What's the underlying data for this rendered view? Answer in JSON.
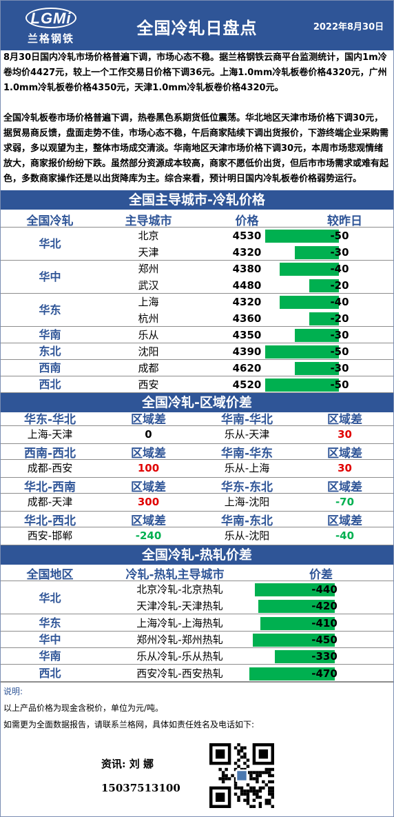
{
  "header": {
    "logo_text": "LGMi",
    "logo_cn": "兰格钢铁",
    "title": "全国冷轧日盘点",
    "date": "2022年8月30日"
  },
  "summary": {
    "p1": "8月30日国内冷轧市场价格普遍下调，市场心态不稳。据兰格钢铁云商平台监测统计，国内1m冷卷均价4427元，较上一个工作交易日价格下调36元。上海1.0mm冷轧板卷价格4320元，广州1.0mm冷轧板卷价格4350元，天津1.0mm冷轧板卷价格4320元。",
    "p2": "全国冷轧板卷市场价格普遍下调，热卷黑色系期货低位震荡。华北地区天津市场价格下调30元，据贸易商反馈，盘面走势不佳，市场心态不稳，午后商家陆续下调出货报价，下游终端企业采购需求弱，多以观望为主，整体市场成交清淡。华南地区天津市场价格下调30元，本周市场悲观情绪放大，商家报价纷纷下跌。虽然部分资源成本较高，商家不愿低价出货，但后市市场需求或难有起色，多数商家操作还是以出货降库为主。综合来看，预计明日国内冷轧板卷价格弱势运行。"
  },
  "city_prices": {
    "title": "全国主导城市-冷轧价格",
    "headers": [
      "全国冷轧",
      "主导城市",
      "价格",
      "较昨日"
    ],
    "rows": [
      {
        "region": "华北",
        "city": "北京",
        "price": "4530",
        "change": "-50",
        "change_value": -50
      },
      {
        "region": "",
        "city": "天津",
        "price": "4320",
        "change": "-30",
        "change_value": -30
      },
      {
        "region": "华中",
        "city": "郑州",
        "price": "4380",
        "change": "-40",
        "change_value": -40
      },
      {
        "region": "",
        "city": "武汉",
        "price": "4480",
        "change": "-20",
        "change_value": -20
      },
      {
        "region": "华东",
        "city": "上海",
        "price": "4320",
        "change": "-40",
        "change_value": -40
      },
      {
        "region": "",
        "city": "杭州",
        "price": "4360",
        "change": "-20",
        "change_value": -20
      },
      {
        "region": "华南",
        "city": "乐从",
        "price": "4350",
        "change": "-30",
        "change_value": -30
      },
      {
        "region": "东北",
        "city": "沈阳",
        "price": "4390",
        "change": "-50",
        "change_value": -50
      },
      {
        "region": "西南",
        "city": "成都",
        "price": "4620",
        "change": "-30",
        "change_value": -30
      },
      {
        "region": "西北",
        "city": "西安",
        "price": "4520",
        "change": "-50",
        "change_value": -50
      }
    ]
  },
  "regional_spread": {
    "title": "全国冷轧-区域价差",
    "blocks": [
      {
        "left_head": "华东-华北",
        "left_diff_head": "区域差",
        "right_head": "华南-华北",
        "right_diff_head": "区域差",
        "left_pair": "上海-天津",
        "left_value": "0",
        "left_color": "black",
        "right_pair": "乐从-天津",
        "right_value": "30",
        "right_color": "red"
      },
      {
        "left_head": "西南-西北",
        "left_diff_head": "区域差",
        "right_head": "华南-华东",
        "right_diff_head": "区域差",
        "left_pair": "成都-西安",
        "left_value": "100",
        "left_color": "red",
        "right_pair": "乐从-上海",
        "right_value": "30",
        "right_color": "red"
      },
      {
        "left_head": "华北-西南",
        "left_diff_head": "区域差",
        "right_head": "华东-东北",
        "right_diff_head": "区域差",
        "left_pair": "成都-天津",
        "left_value": "300",
        "left_color": "red",
        "right_pair": "上海-沈阳",
        "right_value": "-70",
        "right_color": "green"
      },
      {
        "left_head": "华北-西北",
        "left_diff_head": "区域差",
        "right_head": "华南-东北",
        "right_diff_head": "区域差",
        "left_pair": "西安-邯郸",
        "left_value": "-240",
        "left_color": "green",
        "right_pair": "乐从-沈阳",
        "right_value": "-40",
        "right_color": "green"
      }
    ]
  },
  "cold_hot_spread": {
    "title": "全国冷轧-热轧价差",
    "headers": [
      "全国地区",
      "冷轧-热轧主导城市",
      "价差"
    ],
    "rows": [
      {
        "region": "华北",
        "pair": "北京冷轧-北京热轧",
        "spread": "-440",
        "spread_value": -440
      },
      {
        "region": "",
        "pair": "天津冷轧-天津热轧",
        "spread": "-420",
        "spread_value": -420
      },
      {
        "region": "华东",
        "pair": "上海冷轧-上海热轧",
        "spread": "-410",
        "spread_value": -410
      },
      {
        "region": "华中",
        "pair": "郑州冷轧-郑州热轧",
        "spread": "-450",
        "spread_value": -450
      },
      {
        "region": "华南",
        "pair": "乐从冷轧-乐从热轧",
        "spread": "-330",
        "spread_value": -330
      },
      {
        "region": "西北",
        "pair": "西安冷轧-西安热轧",
        "spread": "-470",
        "spread_value": -470
      }
    ]
  },
  "footer": {
    "note_label": "说明:",
    "note1": "以上产品价格为现金含税价，单位为元/吨。",
    "note2": "如需更为全面数据报告，请联系兰格网，具体如责任姓名及电话如下:",
    "contact": "资讯: 刘 娜",
    "phone": "15037513100"
  },
  "colors": {
    "brand": "#2f5597",
    "bar": "#00b050",
    "up": "#e00000"
  }
}
